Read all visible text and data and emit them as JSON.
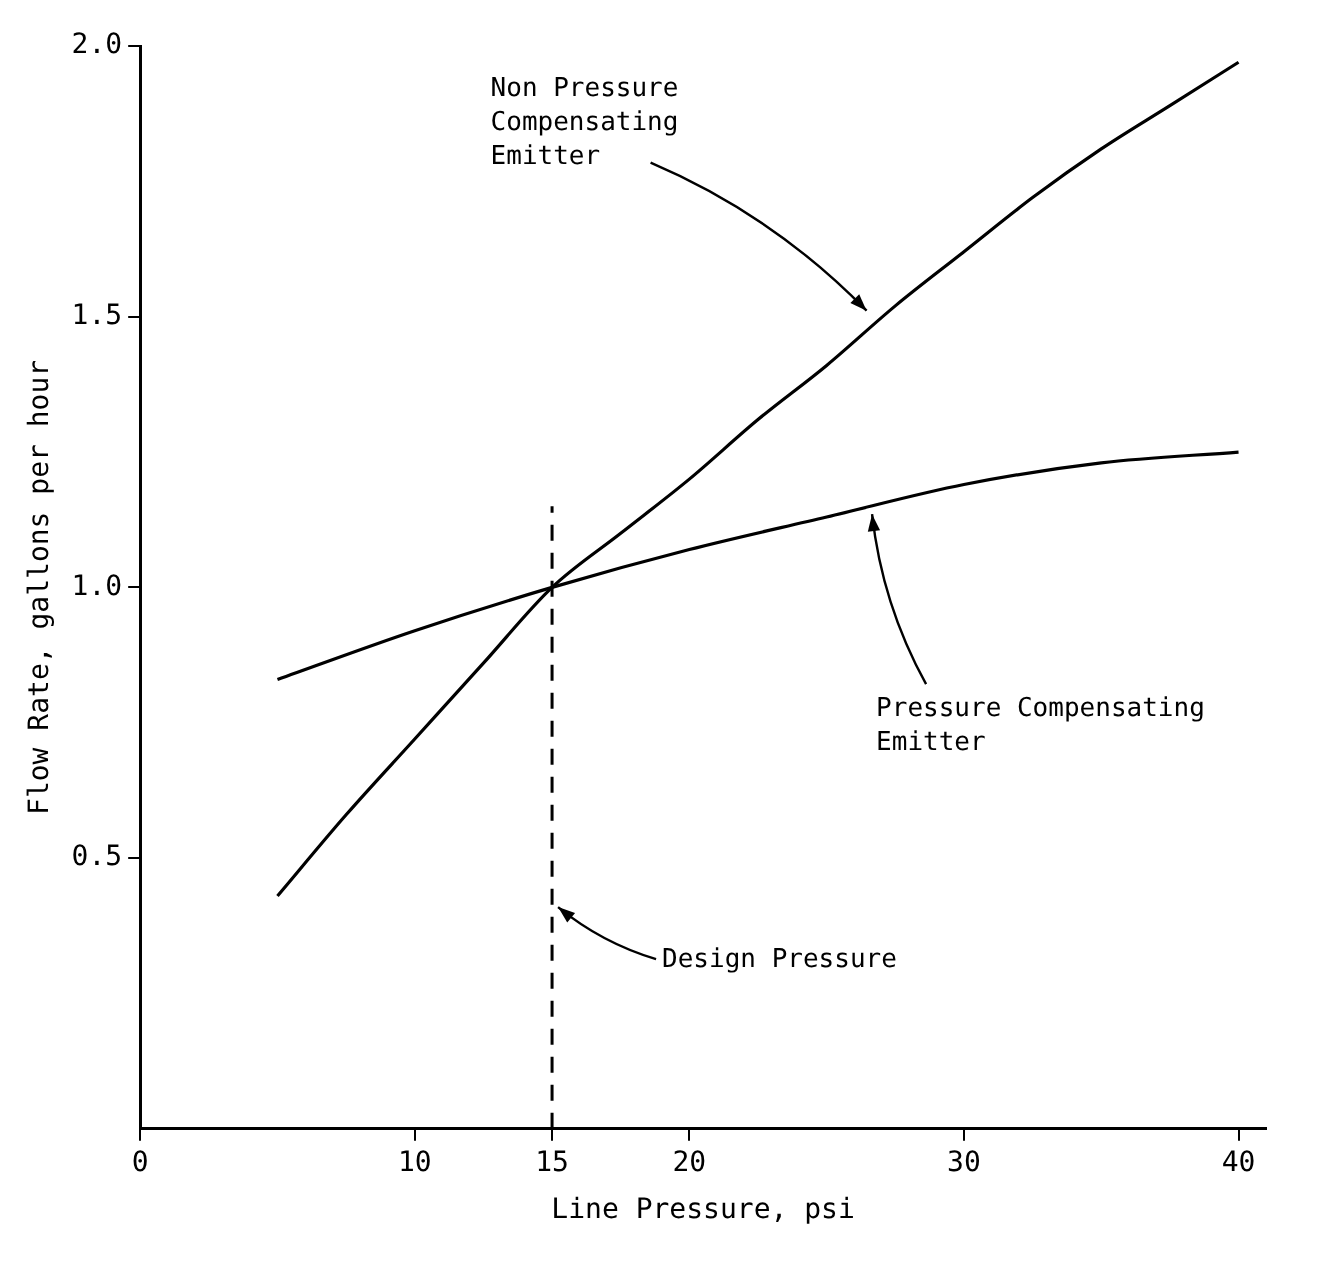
{
  "chart_data": {
    "type": "line",
    "xlabel": "Line Pressure, psi",
    "ylabel": "Flow Rate, gallons per hour",
    "xlim": [
      0,
      41
    ],
    "xticks": [
      0,
      10,
      15,
      20,
      30,
      40
    ],
    "ylim": [
      0,
      2.0
    ],
    "yticks": [
      {
        "value": 0.5,
        "label": "0.5"
      },
      {
        "value": 1,
        "label": "1.0"
      },
      {
        "value": 1.5,
        "label": "1.5"
      },
      {
        "value": 2,
        "label": "2.0"
      }
    ],
    "grid": false,
    "legend": false,
    "marker": "none",
    "line_style": "solid",
    "series": [
      {
        "color": "#000000",
        "x": [
          5,
          7.5,
          10,
          12.5,
          15,
          17.5,
          20,
          22.5,
          25,
          27.5,
          30,
          32.5,
          35,
          37.5,
          40
        ],
        "values": [
          0.43,
          0.58,
          0.72,
          0.86,
          1.0,
          1.1,
          1.2,
          1.31,
          1.41,
          1.52,
          1.62,
          1.72,
          1.81,
          1.89,
          1.97
        ]
      },
      {
        "color": "#000000",
        "x": [
          5,
          10,
          15,
          20,
          25,
          30,
          35,
          40
        ],
        "values": [
          0.83,
          0.92,
          1.0,
          1.07,
          1.13,
          1.19,
          1.23,
          1.25
        ]
      }
    ],
    "ref_lines": [
      {
        "axis": "x",
        "value": 15,
        "label": "Design Pressure",
        "color": "#000000",
        "line_style": "dashed"
      }
    ],
    "annotations": [
      {
        "text": "Non Pressure\nCompensating\nEmitter",
        "x": 26.6,
        "y": 1.5
      },
      {
        "text": "Pressure Compensating\nEmitter",
        "x": 26.8,
        "y": 1.15
      }
    ]
  }
}
